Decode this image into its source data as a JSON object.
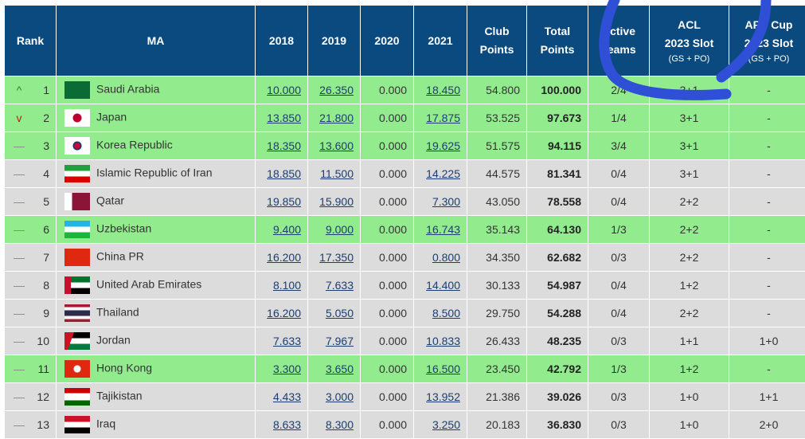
{
  "headers": {
    "rank": "Rank",
    "ma": "MA",
    "y2018": "2018",
    "y2019": "2019",
    "y2020": "2020",
    "y2021": "2021",
    "club1": "Club",
    "club2": "Points",
    "total1": "Total",
    "total2": "Points",
    "active1": "Active",
    "active2": "Teams",
    "acl1": "ACL",
    "acl2": "2023 Slot",
    "acl3": "(GS + PO)",
    "afc1": "AFC Cup",
    "afc2": "2023 Slot",
    "afc3": "(GS + PO)"
  },
  "rows": [
    {
      "trend": "up",
      "rank": "1",
      "name": "Saudi Arabia",
      "flag": "sa",
      "y2018": "10.000",
      "y2019": "26.350",
      "y2020": "0.000",
      "y2021": "18.450",
      "club": "54.800",
      "total": "100.000",
      "active": "2/4",
      "acl": "3+1",
      "afc": "-",
      "hl": true
    },
    {
      "trend": "down",
      "rank": "2",
      "name": "Japan",
      "flag": "jp",
      "y2018": "13.850",
      "y2019": "21.800",
      "y2020": "0.000",
      "y2021": "17.875",
      "club": "53.525",
      "total": "97.673",
      "active": "1/4",
      "acl": "3+1",
      "afc": "-",
      "hl": true
    },
    {
      "trend": "same",
      "rank": "3",
      "name": "Korea Republic",
      "flag": "kr",
      "y2018": "18.350",
      "y2019": "13.600",
      "y2020": "0.000",
      "y2021": "19.625",
      "club": "51.575",
      "total": "94.115",
      "active": "3/4",
      "acl": "3+1",
      "afc": "-",
      "hl": true
    },
    {
      "trend": "same",
      "rank": "4",
      "name": "Islamic Republic of Iran",
      "flag": "ir",
      "y2018": "18.850",
      "y2019": "11.500",
      "y2020": "0.000",
      "y2021": "14.225",
      "club": "44.575",
      "total": "81.341",
      "active": "0/4",
      "acl": "3+1",
      "afc": "-",
      "hl": false
    },
    {
      "trend": "same",
      "rank": "5",
      "name": "Qatar",
      "flag": "qa",
      "y2018": "19.850",
      "y2019": "15.900",
      "y2020": "0.000",
      "y2021": "7.300",
      "club": "43.050",
      "total": "78.558",
      "active": "0/4",
      "acl": "2+2",
      "afc": "-",
      "hl": false
    },
    {
      "trend": "same",
      "rank": "6",
      "name": "Uzbekistan",
      "flag": "uz",
      "y2018": "9.400",
      "y2019": "9.000",
      "y2020": "0.000",
      "y2021": "16.743",
      "club": "35.143",
      "total": "64.130",
      "active": "1/3",
      "acl": "2+2",
      "afc": "-",
      "hl": true
    },
    {
      "trend": "same",
      "rank": "7",
      "name": "China PR",
      "flag": "cn",
      "y2018": "16.200",
      "y2019": "17.350",
      "y2020": "0.000",
      "y2021": "0.800",
      "club": "34.350",
      "total": "62.682",
      "active": "0/3",
      "acl": "2+2",
      "afc": "-",
      "hl": false
    },
    {
      "trend": "same",
      "rank": "8",
      "name": "United Arab Emirates",
      "flag": "ae",
      "y2018": "8.100",
      "y2019": "7.633",
      "y2020": "0.000",
      "y2021": "14.400",
      "club": "30.133",
      "total": "54.987",
      "active": "0/4",
      "acl": "1+2",
      "afc": "-",
      "hl": false
    },
    {
      "trend": "same",
      "rank": "9",
      "name": "Thailand",
      "flag": "th",
      "y2018": "16.200",
      "y2019": "5.050",
      "y2020": "0.000",
      "y2021": "8.500",
      "club": "29.750",
      "total": "54.288",
      "active": "0/4",
      "acl": "2+2",
      "afc": "-",
      "hl": false
    },
    {
      "trend": "same",
      "rank": "10",
      "name": "Jordan",
      "flag": "jo",
      "y2018": "7.633",
      "y2019": "7.967",
      "y2020": "0.000",
      "y2021": "10.833",
      "club": "26.433",
      "total": "48.235",
      "active": "0/3",
      "acl": "1+1",
      "afc": "1+0",
      "hl": false
    },
    {
      "trend": "same",
      "rank": "11",
      "name": "Hong Kong",
      "flag": "hk",
      "y2018": "3.300",
      "y2019": "3.650",
      "y2020": "0.000",
      "y2021": "16.500",
      "club": "23.450",
      "total": "42.792",
      "active": "1/3",
      "acl": "1+2",
      "afc": "-",
      "hl": true
    },
    {
      "trend": "same",
      "rank": "12",
      "name": "Tajikistan",
      "flag": "tj",
      "y2018": "4.433",
      "y2019": "3.000",
      "y2020": "0.000",
      "y2021": "13.952",
      "club": "21.386",
      "total": "39.026",
      "active": "0/3",
      "acl": "1+0",
      "afc": "1+1",
      "hl": false
    },
    {
      "trend": "same",
      "rank": "13",
      "name": "Iraq",
      "flag": "iq",
      "y2018": "8.633",
      "y2019": "8.300",
      "y2020": "0.000",
      "y2021": "3.250",
      "club": "20.183",
      "total": "36.830",
      "active": "0/3",
      "acl": "1+0",
      "afc": "2+0",
      "hl": false
    }
  ],
  "colors": {
    "header": "#0b4a7e",
    "highlight": "#92ec8e",
    "normal": "#dcdcdc",
    "annotation": "#2f4fd6"
  }
}
